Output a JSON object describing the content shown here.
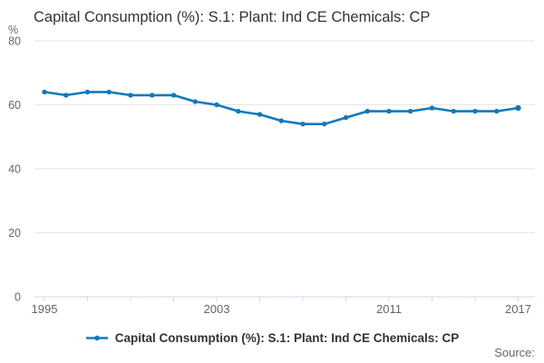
{
  "title": "Capital Consumption (%): S.1: Plant: Ind CE Chemicals: CP",
  "legend": {
    "label": "Capital Consumption (%): S.1: Plant: Ind CE Chemicals: CP"
  },
  "source_label": "Source:",
  "colors": {
    "line": "#1278bd",
    "grid": "#e6e6e6",
    "axis": "#ccd6eb",
    "axis_text": "#666666",
    "title_text": "#333333",
    "legend_text": "#333333"
  },
  "chart_data": {
    "type": "line",
    "title": "Capital Consumption (%): S.1: Plant: Ind CE Chemicals: CP",
    "xlabel": "",
    "ylabel": "%",
    "x": [
      1995,
      1996,
      1997,
      1998,
      1999,
      2000,
      2001,
      2002,
      2003,
      2004,
      2005,
      2006,
      2007,
      2008,
      2009,
      2010,
      2011,
      2012,
      2013,
      2014,
      2015,
      2016,
      2017
    ],
    "values": [
      64,
      63,
      64,
      64,
      63,
      63,
      63,
      61,
      60,
      58,
      57,
      55,
      54,
      54,
      56,
      58,
      58,
      58,
      59,
      58,
      58,
      58,
      59
    ],
    "ylim": [
      0,
      80
    ],
    "y_ticks": [
      0,
      20,
      40,
      60,
      80
    ],
    "x_tick_step": 2,
    "x_labeled_ticks": [
      1995,
      2003,
      2011,
      2017
    ],
    "grid": "horizontal",
    "legend_position": "bottom"
  }
}
